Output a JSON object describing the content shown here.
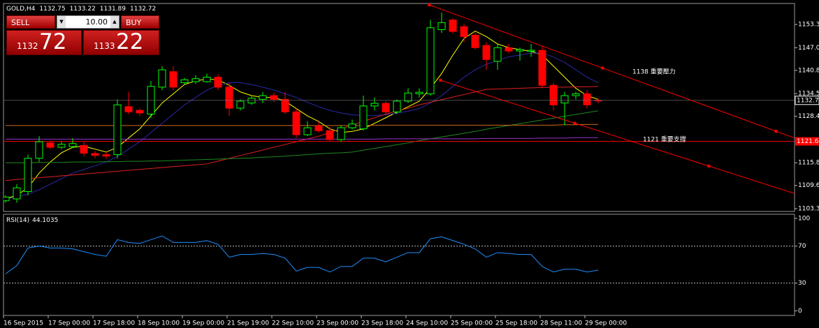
{
  "trade_panel": {
    "sell": "SELL",
    "buy": "BUY",
    "lots": "10.00",
    "bid_big": "1132",
    "bid_small": "72",
    "ask_big": "1133",
    "ask_small": "22"
  },
  "chart_data": [
    {
      "type": "candlestick",
      "title": "GOLD,H4",
      "categories": [
        "16 Sep 2015",
        null,
        null,
        null,
        "17 Sep 00:00",
        null,
        null,
        null,
        "17 Sep 18:00",
        null,
        null,
        null,
        "18 Sep 10:00",
        null,
        null,
        null,
        "19 Sep 00:00",
        null,
        null,
        null,
        "21 Sep 19:00",
        null,
        null,
        null,
        "22 Sep 10:00",
        null,
        null,
        null,
        "23 Sep 00:00",
        null,
        null,
        null,
        "23 Sep 18:00",
        null,
        null,
        null,
        "24 Sep 10:00",
        null,
        null,
        null,
        "25 Sep 00:00",
        null,
        null,
        null,
        "25 Sep 18:00",
        null,
        null,
        null,
        "28 Sep 11:00",
        null,
        null,
        null,
        "29 Sep 00:00",
        null
      ],
      "open": [
        1105.5,
        1106,
        1108,
        1117,
        1121.2,
        1120,
        1120.2,
        1120.5,
        1118.3,
        1118,
        1118,
        1131,
        1130,
        1129,
        1136.3,
        1140.5,
        1137.5,
        1137.8,
        1137.8,
        1139,
        1136.3,
        1130.6,
        1132,
        1133,
        1134,
        1133,
        1129.6,
        1123.4,
        1125.8,
        1124.5,
        1122.1,
        1125.3,
        1125,
        1131.2,
        1131.9,
        1129.6,
        1132.5,
        1134.5,
        1134.5,
        1151.9,
        1154.5,
        1152.7,
        1150.4,
        1147.6,
        1143.3,
        1147,
        1146.1,
        1146,
        1146.3,
        1136.8,
        1132,
        1134,
        1134.5,
        1132.75
      ],
      "high": [
        1107,
        1110,
        1118,
        1123,
        1121.8,
        1121.5,
        1122.5,
        1121.5,
        1119,
        1118.8,
        1133,
        1135,
        1130.5,
        1138,
        1142,
        1142,
        1138.8,
        1139.5,
        1140,
        1139.8,
        1137.5,
        1133,
        1133.8,
        1135,
        1134.8,
        1135,
        1130.5,
        1127,
        1127,
        1125.5,
        1126,
        1127.5,
        1134,
        1133.5,
        1132.5,
        1133,
        1136,
        1136,
        1154.5,
        1156.5,
        1155,
        1153.5,
        1151,
        1148.5,
        1148,
        1148,
        1147,
        1148,
        1147.5,
        1137.5,
        1135,
        1135,
        1135.5,
        1133.22
      ],
      "low": [
        1105,
        1105,
        1107,
        1116,
        1119.5,
        1119.5,
        1119.8,
        1117.5,
        1117,
        1116.8,
        1117,
        1129,
        1128.5,
        1128,
        1135.5,
        1135.5,
        1137,
        1137.2,
        1137.5,
        1135.5,
        1128.5,
        1130,
        1131.5,
        1132,
        1132.3,
        1129,
        1122.5,
        1123,
        1124,
        1121.6,
        1121.5,
        1124.8,
        1124.5,
        1130,
        1129,
        1129,
        1132,
        1133.5,
        1134,
        1151,
        1150.8,
        1148.5,
        1146.5,
        1141,
        1141,
        1145.5,
        1143.5,
        1144.5,
        1136,
        1130,
        1126,
        1133,
        1130.5,
        1131.89
      ],
      "close": [
        1106.5,
        1109,
        1117,
        1121.5,
        1120,
        1120.8,
        1121,
        1118.4,
        1117.8,
        1117.6,
        1131.5,
        1129.6,
        1129.3,
        1136.5,
        1141,
        1136.3,
        1138.3,
        1138.6,
        1139,
        1136.3,
        1130.6,
        1132.5,
        1133.3,
        1134,
        1133,
        1129.6,
        1123.4,
        1125.3,
        1124.5,
        1122.1,
        1125.3,
        1126.3,
        1131.2,
        1131.9,
        1129.6,
        1132.5,
        1134.7,
        1134.9,
        1152.4,
        1153.8,
        1151.4,
        1150,
        1147,
        1143.8,
        1147,
        1146.1,
        1146.5,
        1146.3,
        1136.8,
        1131.5,
        1134,
        1134.5,
        1131.5,
        1132.72
      ],
      "up_color": "#00ff00",
      "down_color": "#ff0000",
      "series": [
        {
          "color": "#ffff00",
          "values": [
            1106,
            1107,
            1109,
            1113,
            1116,
            1118.5,
            1120,
            1120.3,
            1119.5,
            1118.7,
            1120,
            1122.5,
            1125,
            1128.5,
            1132,
            1134.5,
            1137,
            1138,
            1138.5,
            1138.3,
            1136.8,
            1135,
            1134,
            1133.5,
            1133.5,
            1132.5,
            1130.5,
            1128.5,
            1127,
            1125,
            1124,
            1124.3,
            1125,
            1126.5,
            1128,
            1129.5,
            1131,
            1132.5,
            1136,
            1140,
            1145,
            1149.5,
            1151.5,
            1150,
            1148,
            1147,
            1146.5,
            1146,
            1145,
            1142,
            1139,
            1136,
            1134,
            1133
          ]
        },
        {
          "color": "#2a2aa8",
          "values": [
            1106,
            1106.5,
            1107.3,
            1108.5,
            1110,
            1111.5,
            1113,
            1114,
            1115,
            1116,
            1117.5,
            1119.5,
            1121.5,
            1124,
            1126.5,
            1129,
            1131.5,
            1133.5,
            1135.5,
            1136.8,
            1137.5,
            1137.5,
            1137,
            1136.3,
            1135.5,
            1134.5,
            1133.5,
            1132.2,
            1131,
            1130,
            1129.3,
            1128.8,
            1128.6,
            1128.6,
            1128.8,
            1129.2,
            1129.8,
            1130.5,
            1132,
            1134,
            1136.5,
            1139,
            1141,
            1142.5,
            1143.5,
            1144.5,
            1145,
            1145.5,
            1145.5,
            1144.5,
            1143,
            1141,
            1139,
            1137.5
          ]
        },
        {
          "color": "#e02020",
          "values": [
            1111,
            1111.25,
            1111.5,
            1111.75,
            1112,
            1112.25,
            1112.5,
            1112.75,
            1113,
            1113.25,
            1113.5,
            1113.75,
            1114,
            1114.25,
            1114.5,
            1114.75,
            1115,
            1115.25,
            1115.5,
            1116.25,
            1117,
            1117.75,
            1118.5,
            1119.25,
            1120,
            1120.75,
            1121.5,
            1122.25,
            1123,
            1124,
            1125,
            1126,
            1127,
            1128,
            1129,
            1129.8,
            1130.6,
            1131.5,
            1132.2,
            1132.9,
            1133.6,
            1134.3,
            1135,
            1135.7,
            1135.8,
            1135.9,
            1136,
            1136.1,
            1136.2,
            1136.3,
            1136.3,
            1136.4,
            1136.4,
            1136.5
          ]
        },
        {
          "color": "#1f8a1f",
          "values": [
            1115.8,
            1115.8,
            1115.8,
            1115.9,
            1115.9,
            1115.9,
            1116,
            1116,
            1116,
            1116.1,
            1116.1,
            1116.2,
            1116.2,
            1116.3,
            1116.3,
            1116.4,
            1116.5,
            1116.6,
            1116.7,
            1116.8,
            1116.9,
            1117,
            1117.1,
            1117.3,
            1117.4,
            1117.6,
            1117.8,
            1118,
            1118.2,
            1118.4,
            1118.5,
            1118.7,
            1119.2,
            1119.7,
            1120.2,
            1120.7,
            1121.2,
            1121.8,
            1122.3,
            1122.8,
            1123.3,
            1123.8,
            1124.3,
            1124.9,
            1125.4,
            1125.9,
            1126.4,
            1126.9,
            1127.4,
            1127.9,
            1128.4,
            1128.9,
            1129.4,
            1129.9
          ]
        },
        {
          "color": "#d2691e",
          "values": [
            1125.9,
            1125.9,
            1125.9,
            1125.9,
            1125.9,
            1125.9,
            1125.9,
            1125.9,
            1125.9,
            1125.9,
            1125.9,
            1125.9,
            1125.9,
            1125.9,
            1125.9,
            1125.9,
            1125.9,
            1125.9,
            1125.9,
            1125.9,
            1125.9,
            1125.9,
            1125.9,
            1125.9,
            1125.9,
            1125.9,
            1125.9,
            1125.9,
            1125.9,
            1125.9,
            1125.9,
            1125.9,
            1125.9,
            1126,
            1126,
            1126,
            1126,
            1126,
            1126,
            1126,
            1126,
            1126,
            1126,
            1126,
            1126,
            1126,
            1126,
            1126,
            1126,
            1126,
            1126.1,
            1126.1,
            1126.2,
            1126.2
          ]
        },
        {
          "color": "#9932cc",
          "values": [
            1122.2,
            1122.2,
            1122.2,
            1122.2,
            1122.2,
            1122.2,
            1122.2,
            1122.2,
            1122.2,
            1122.2,
            1122.2,
            1122.2,
            1122.2,
            1122.2,
            1122.2,
            1122.2,
            1122.2,
            1122.2,
            1122.2,
            1122.2,
            1122.2,
            1122.2,
            1122.2,
            1122.2,
            1122.2,
            1122.2,
            1122.2,
            1122.2,
            1122.2,
            1122.2,
            1122.2,
            1122.2,
            1122.2,
            1122.2,
            1122.3,
            1122.3,
            1122.3,
            1122.3,
            1122.3,
            1122.3,
            1122.3,
            1122.3,
            1122.3,
            1122.4,
            1122.4,
            1122.4,
            1122.4,
            1122.4,
            1122.5,
            1122.5,
            1122.5,
            1122.6,
            1122.6,
            1122.6
          ]
        }
      ],
      "ylim": [
        1102.6,
        1158.98
      ],
      "yticks": [
        {
          "value": 1153.3,
          "label": "1153.30"
        },
        {
          "value": 1147,
          "label": "1147.00"
        },
        {
          "value": 1140.85,
          "label": "1140.85"
        },
        {
          "value": 1134.55,
          "label": "1134.55"
        },
        {
          "value": 1128.4,
          "label": "1128.40"
        },
        {
          "value": 1115.8,
          "label": "1115.80"
        },
        {
          "value": 1109.65,
          "label": "1109.65"
        },
        {
          "value": 1103.35,
          "label": "1103.35"
        }
      ],
      "hlines": [
        {
          "value": 1121.6,
          "label": "1121.60",
          "color": "#ff0000"
        }
      ],
      "trendlines": [
        {
          "x": [
            37.9,
            68.9
          ],
          "y": [
            1158.6,
            1124.35
          ],
          "color": "#ff0000"
        },
        {
          "x": [
            38.9,
            62.9
          ],
          "y": [
            1138.16,
            1114.9
          ],
          "color": "#ff0000"
        }
      ],
      "annotations": [
        "1138  重要壓力",
        "1121   重要支撐"
      ]
    },
    {
      "type": "line",
      "title": "RSI(14)",
      "color": "#1e90ff",
      "values": [
        40,
        49,
        68,
        70,
        68,
        68,
        67,
        64,
        61,
        59,
        77,
        74,
        73,
        77,
        81,
        74,
        74,
        74,
        76,
        72,
        58,
        61,
        61,
        62,
        61,
        57,
        43,
        47,
        47,
        42,
        48,
        48,
        57,
        57,
        53,
        58,
        63,
        63,
        78,
        80,
        76,
        72,
        67,
        58,
        63,
        62,
        61,
        61,
        48,
        42,
        45,
        45,
        42,
        44.1035
      ],
      "ylim": [
        -5,
        104.5
      ],
      "yticks": [
        0,
        30,
        70,
        100
      ],
      "levels": [
        30,
        70
      ]
    }
  ]
}
